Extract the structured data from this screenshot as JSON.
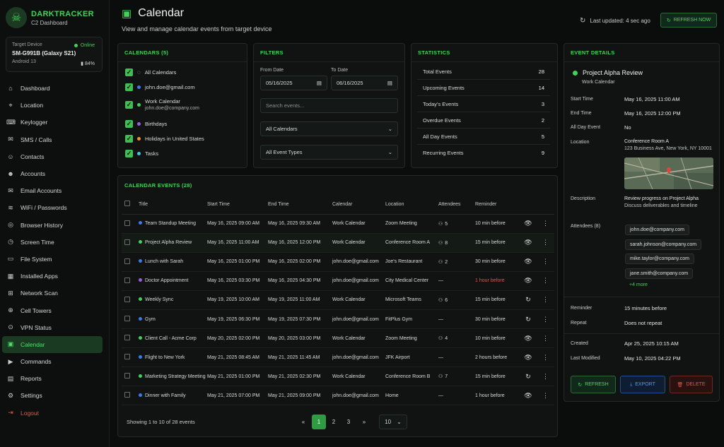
{
  "brand": {
    "name": "DARKTRACKER",
    "subtitle": "C2 Dashboard"
  },
  "device": {
    "label": "Target Device",
    "status": "Online",
    "model": "SM-G991B (Galaxy S21)",
    "os": "Android 13",
    "battery": "84%"
  },
  "nav": [
    {
      "label": "Dashboard",
      "icon": "dashboard-icon",
      "glyph": "⌂"
    },
    {
      "label": "Location",
      "icon": "location-pin-icon",
      "glyph": "⌖"
    },
    {
      "label": "Keylogger",
      "icon": "keyboard-icon",
      "glyph": "⌨"
    },
    {
      "label": "SMS / Calls",
      "icon": "message-icon",
      "glyph": "✉"
    },
    {
      "label": "Contacts",
      "icon": "contacts-icon",
      "glyph": "☺"
    },
    {
      "label": "Accounts",
      "icon": "account-icon",
      "glyph": "☻"
    },
    {
      "label": "Email Accounts",
      "icon": "email-icon",
      "glyph": "✉"
    },
    {
      "label": "WiFi / Passwords",
      "icon": "wifi-icon",
      "glyph": "≋"
    },
    {
      "label": "Browser History",
      "icon": "browser-icon",
      "glyph": "◎"
    },
    {
      "label": "Screen Time",
      "icon": "clock-icon",
      "glyph": "◷"
    },
    {
      "label": "File System",
      "icon": "folder-icon",
      "glyph": "▭"
    },
    {
      "label": "Installed Apps",
      "icon": "apps-grid-icon",
      "glyph": "▦"
    },
    {
      "label": "Network Scan",
      "icon": "network-icon",
      "glyph": "⊞"
    },
    {
      "label": "Cell Towers",
      "icon": "cell-tower-icon",
      "glyph": "⊕"
    },
    {
      "label": "VPN Status",
      "icon": "vpn-icon",
      "glyph": "⊙"
    },
    {
      "label": "Calendar",
      "icon": "calendar-icon",
      "glyph": "▣"
    },
    {
      "label": "Commands",
      "icon": "terminal-icon",
      "glyph": "▶"
    },
    {
      "label": "Reports",
      "icon": "report-icon",
      "glyph": "▤"
    },
    {
      "label": "Settings",
      "icon": "gear-icon",
      "glyph": "⚙"
    },
    {
      "label": "Logout",
      "icon": "logout-icon",
      "glyph": "⇥"
    }
  ],
  "header": {
    "title": "Calendar",
    "subtitle": "View and manage calendar events from target device",
    "last_updated": "Last updated: 4 sec ago",
    "refresh_label": "REFRESH NOW"
  },
  "calendars": {
    "title": "CALENDARS (5)",
    "items": [
      {
        "label": "All Calendars",
        "sub": "",
        "color": ""
      },
      {
        "label": "john.doe@gmail.com",
        "sub": "",
        "color": "#3b7bea"
      },
      {
        "label": "Work Calendar",
        "sub": "john.doe@company.com",
        "color": "#3fd35a"
      },
      {
        "label": "Birthdays",
        "sub": "",
        "color": "#9b5ee0"
      },
      {
        "label": "Holidays in United States",
        "sub": "",
        "color": "#e8923a"
      },
      {
        "label": "Tasks",
        "sub": "",
        "color": "#3ec6e0"
      }
    ]
  },
  "filters": {
    "title": "FILTERS",
    "from_label": "From Date",
    "from_value": "05/16/2025",
    "to_label": "To Date",
    "to_value": "06/16/2025",
    "search_placeholder": "Search events...",
    "calendar_select": "All Calendars",
    "type_select": "All Event Types"
  },
  "stats": {
    "title": "STATISTICS",
    "rows": [
      {
        "label": "Total Events",
        "value": "28"
      },
      {
        "label": "Upcoming Events",
        "value": "14"
      },
      {
        "label": "Today's Events",
        "value": "3"
      },
      {
        "label": "Overdue Events",
        "value": "2"
      },
      {
        "label": "All Day Events",
        "value": "5"
      },
      {
        "label": "Recurring Events",
        "value": "9"
      }
    ]
  },
  "events": {
    "title": "CALENDAR EVENTS (28)",
    "columns": [
      "Title",
      "Start Time",
      "End Time",
      "Calendar",
      "Location",
      "Attendees",
      "Reminder"
    ],
    "rows": [
      {
        "title": "Team Standup Meeting",
        "color": "#3b7bea",
        "start": "May 16, 2025 09:00 AM",
        "end": "May 16, 2025 09:30 AM",
        "calendar": "Work Calendar",
        "location": "Zoom Meeting",
        "attendees": "5",
        "reminder": "10 min before",
        "reminder_alert": false,
        "action": "eye"
      },
      {
        "title": "Project Alpha Review",
        "color": "#3fd35a",
        "start": "May 16, 2025 11:00 AM",
        "end": "May 16, 2025 12:00 PM",
        "calendar": "Work Calendar",
        "location": "Conference Room A",
        "attendees": "8",
        "reminder": "15 min before",
        "reminder_alert": false,
        "action": "eye"
      },
      {
        "title": "Lunch with Sarah",
        "color": "#3b7bea",
        "start": "May 16, 2025 01:00 PM",
        "end": "May 16, 2025 02:00 PM",
        "calendar": "john.doe@gmail.com",
        "location": "Joe's Restaurant",
        "attendees": "2",
        "reminder": "30 min before",
        "reminder_alert": false,
        "action": "eye"
      },
      {
        "title": "Doctor Appointment",
        "color": "#9b5ee0",
        "start": "May 16, 2025 03:30 PM",
        "end": "May 16, 2025 04:30 PM",
        "calendar": "john.doe@gmail.com",
        "location": "City Medical Center",
        "attendees": "—",
        "reminder": "1 hour before",
        "reminder_alert": true,
        "action": "eye"
      },
      {
        "title": "Weekly Sync",
        "color": "#3fd35a",
        "start": "May 19, 2025 10:00 AM",
        "end": "May 19, 2025 11:00 AM",
        "calendar": "Work Calendar",
        "location": "Microsoft Teams",
        "attendees": "6",
        "reminder": "15 min before",
        "reminder_alert": false,
        "action": "sync"
      },
      {
        "title": "Gym",
        "color": "#3b7bea",
        "start": "May 19, 2025 06:30 PM",
        "end": "May 19, 2025 07:30 PM",
        "calendar": "john.doe@gmail.com",
        "location": "FitPlus Gym",
        "attendees": "—",
        "reminder": "30 min before",
        "reminder_alert": false,
        "action": "sync"
      },
      {
        "title": "Client Call - Acme Corp",
        "color": "#3fd35a",
        "start": "May 20, 2025 02:00 PM",
        "end": "May 20, 2025 03:00 PM",
        "calendar": "Work Calendar",
        "location": "Zoom Meeting",
        "attendees": "4",
        "reminder": "10 min before",
        "reminder_alert": false,
        "action": "eye"
      },
      {
        "title": "Flight to New York",
        "color": "#3b7bea",
        "start": "May 21, 2025 08:45 AM",
        "end": "May 21, 2025 11:45 AM",
        "calendar": "john.doe@gmail.com",
        "location": "JFK Airport",
        "attendees": "—",
        "reminder": "2 hours before",
        "reminder_alert": false,
        "action": "eye"
      },
      {
        "title": "Marketing Strategy Meeting",
        "color": "#3fd35a",
        "start": "May 21, 2025 01:00 PM",
        "end": "May 21, 2025 02:30 PM",
        "calendar": "Work Calendar",
        "location": "Conference Room B",
        "attendees": "7",
        "reminder": "15 min before",
        "reminder_alert": false,
        "action": "sync"
      },
      {
        "title": "Dinner with Family",
        "color": "#3b7bea",
        "start": "May 21, 2025 07:00 PM",
        "end": "May 21, 2025 09:00 PM",
        "calendar": "john.doe@gmail.com",
        "location": "Home",
        "attendees": "—",
        "reminder": "1 hour before",
        "reminder_alert": false,
        "action": "eye"
      }
    ],
    "showing": "Showing 1 to 10 of 28 events",
    "pages": [
      "1",
      "2",
      "3"
    ],
    "prev": "«",
    "next": "»",
    "page_size": "10"
  },
  "details": {
    "title": "EVENT DETAILS",
    "event_title": "Project Alpha Review",
    "event_calendar": "Work Calendar",
    "start_label": "Start Time",
    "start": "May 16, 2025 11:00 AM",
    "end_label": "End Time",
    "end": "May 16, 2025 12:00 PM",
    "allday_label": "All Day Event",
    "allday": "No",
    "location_label": "Location",
    "location": "Conference Room A",
    "address": "123 Business Ave, New York, NY 10001",
    "desc_label": "Description",
    "desc1": "Review progress on Project Alpha",
    "desc2": "Discuss deliverables and timeline",
    "attendees_label": "Attendees (8)",
    "attendees": [
      "john.doe@company.com",
      "sarah.johnson@company.com",
      "mike.taylor@company.com",
      "jane.smith@company.com"
    ],
    "more": "+4 more",
    "reminder_label": "Reminder",
    "reminder": "15 minutes before",
    "repeat_label": "Repeat",
    "repeat": "Does not repeat",
    "created_label": "Created",
    "created": "Apr 25, 2025 10:15 AM",
    "modified_label": "Last Modified",
    "modified": "May 10, 2025 04:22 PM",
    "btn_refresh": "REFRESH",
    "btn_export": "EXPORT",
    "btn_delete": "DELETE"
  },
  "colors": {
    "accent": "#3fd35a",
    "danger": "#e0574b",
    "info": "#3b7bea"
  }
}
